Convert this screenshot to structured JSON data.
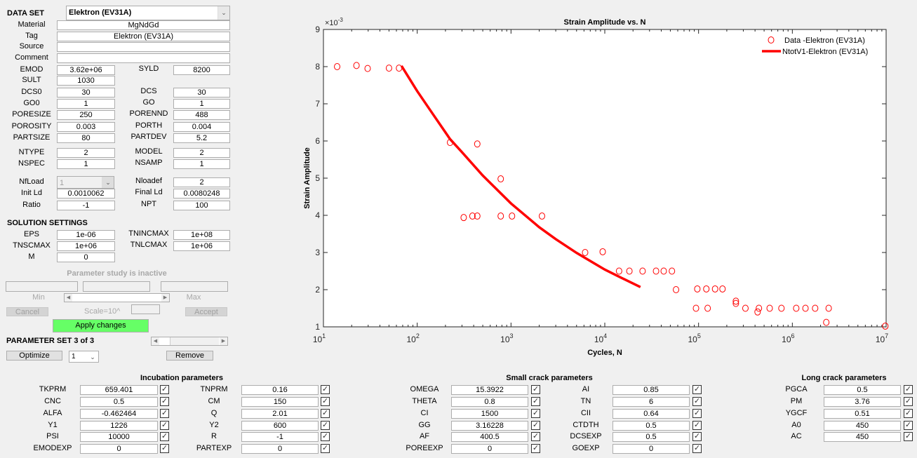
{
  "dataset": {
    "label": "DATA SET",
    "value": "Elektron (EV31A)"
  },
  "text_fields": [
    {
      "label": "Material",
      "value": "MgNdGd"
    },
    {
      "label": "Tag",
      "value": "Elektron (EV31A)"
    },
    {
      "label": "Source",
      "value": ""
    },
    {
      "label": "Comment",
      "value": ""
    }
  ],
  "material_rows": [
    {
      "l": "EMOD",
      "v": "3.62e+06",
      "l2": "SYLD",
      "v2": "8200"
    },
    {
      "l": "SULT",
      "v": "1030"
    },
    {
      "l": "DCS0",
      "v": "30",
      "l2": "DCS",
      "v2": "30"
    },
    {
      "l": "GO0",
      "v": "1",
      "l2": "GO",
      "v2": "1"
    },
    {
      "l": "PORESIZE",
      "v": "250",
      "l2": "PORENND",
      "v2": "488"
    },
    {
      "l": "POROSITY",
      "v": "0.003",
      "l2": "PORTH",
      "v2": "0.004"
    },
    {
      "l": "PARTSIZE",
      "v": "80",
      "l2": "PARTDEV",
      "v2": "5.2"
    },
    {
      "l": "NTYPE",
      "v": "2",
      "l2": "MODEL",
      "v2": "2"
    },
    {
      "l": "NSPEC",
      "v": "1",
      "l2": "NSAMP",
      "v2": "1"
    },
    {
      "l": "NfLoad",
      "v": "1",
      "l2": "Nloadef",
      "v2": "2"
    },
    {
      "l": "Init Ld",
      "v": "0.0010062",
      "l2": "Final Ld",
      "v2": "0.0080248"
    },
    {
      "l": "Ratio",
      "v": "-1",
      "l2": "NPT",
      "v2": "100"
    }
  ],
  "solution": {
    "title": "SOLUTION SETTINGS",
    "rows": [
      {
        "l": "EPS",
        "v": "1e-06",
        "l2": "TNINCMAX",
        "v2": "1e+08"
      },
      {
        "l": "TNSCMAX",
        "v": "1e+06",
        "l2": "TNLCMAX",
        "v2": "1e+06"
      },
      {
        "l": "M",
        "v": "0"
      }
    ]
  },
  "param_study": {
    "status": "Parameter study is inactive",
    "min_label": "Min",
    "max_label": "Max",
    "cancel": "Cancel",
    "scale_label": "Scale=10^",
    "accept": "Accept",
    "apply": "Apply changes",
    "apply_color": "#66ff66"
  },
  "param_set": {
    "title": "PARAMETER SET 3 of 3",
    "optimize": "Optimize",
    "select_value": "1",
    "remove": "Remove"
  },
  "groups": [
    {
      "title": "Incubation parameters",
      "cols": [
        [
          {
            "l": "TKPRM",
            "v": "659.401"
          },
          {
            "l": "CNC",
            "v": "0.5"
          },
          {
            "l": "ALFA",
            "v": "-0.462464"
          },
          {
            "l": "Y1",
            "v": "1226"
          },
          {
            "l": "PSI",
            "v": "10000"
          },
          {
            "l": "EMODEXP",
            "v": "0"
          }
        ],
        [
          {
            "l": "TNPRM",
            "v": "0.16"
          },
          {
            "l": "CM",
            "v": "150"
          },
          {
            "l": "Q",
            "v": "2.01"
          },
          {
            "l": "Y2",
            "v": "600"
          },
          {
            "l": "R",
            "v": "-1"
          },
          {
            "l": "PARTEXP",
            "v": "0"
          }
        ]
      ]
    },
    {
      "title": "Small crack parameters",
      "cols": [
        [
          {
            "l": "OMEGA",
            "v": "15.3922"
          },
          {
            "l": "THETA",
            "v": "0.8"
          },
          {
            "l": "CI",
            "v": "1500"
          },
          {
            "l": "GG",
            "v": "3.16228"
          },
          {
            "l": "AF",
            "v": "400.5"
          },
          {
            "l": "POREEXP",
            "v": "0"
          }
        ],
        [
          {
            "l": "AI",
            "v": "0.85"
          },
          {
            "l": "TN",
            "v": "6"
          },
          {
            "l": "CII",
            "v": "0.64"
          },
          {
            "l": "CTDTH",
            "v": "0.5"
          },
          {
            "l": "DCSEXP",
            "v": "0.5"
          },
          {
            "l": "GOEXP",
            "v": "0"
          }
        ]
      ]
    },
    {
      "title": "Long crack parameters",
      "cols": [
        [
          {
            "l": "PGCA",
            "v": "0.5"
          },
          {
            "l": "PM",
            "v": "3.76"
          },
          {
            "l": "YGCF",
            "v": "0.51"
          },
          {
            "l": "A0",
            "v": "450"
          },
          {
            "l": "AC",
            "v": "450"
          }
        ]
      ]
    }
  ],
  "chart_data": {
    "type": "scatter",
    "title": "Strain Amplitude vs. N",
    "xlabel": "Cycles, N",
    "ylabel": "Strain Amplitude",
    "y_multiplier": "×10",
    "y_multiplier_exp": "-3",
    "xscale": "log",
    "xlim": [
      10,
      10000000
    ],
    "ylim": [
      1,
      9
    ],
    "x_ticks": [
      {
        "base": "10",
        "exp": "1"
      },
      {
        "base": "10",
        "exp": "2"
      },
      {
        "base": "10",
        "exp": "3"
      },
      {
        "base": "10",
        "exp": "4"
      },
      {
        "base": "10",
        "exp": "5"
      },
      {
        "base": "10",
        "exp": "6"
      },
      {
        "base": "10",
        "exp": "7"
      }
    ],
    "y_ticks": [
      "1",
      "2",
      "3",
      "4",
      "5",
      "6",
      "7",
      "8",
      "9"
    ],
    "legend_position": "top-right",
    "series": [
      {
        "name": "Data -Elektron (EV31A)",
        "style": "circles",
        "color": "#ff0000",
        "points": [
          [
            14,
            8.0
          ],
          [
            22.5,
            8.03
          ],
          [
            29.6,
            7.95
          ],
          [
            50,
            7.96
          ],
          [
            64,
            7.96
          ],
          [
            224,
            5.96
          ],
          [
            437,
            5.92
          ],
          [
            313,
            3.94
          ],
          [
            388,
            3.98
          ],
          [
            437,
            3.98
          ],
          [
            777,
            4.98
          ],
          [
            777,
            3.98
          ],
          [
            1025,
            3.98
          ],
          [
            2140,
            3.98
          ],
          [
            6170,
            3.0
          ],
          [
            9500,
            3.02
          ],
          [
            14200,
            2.5
          ],
          [
            18300,
            2.5
          ],
          [
            25300,
            2.5
          ],
          [
            35200,
            2.5
          ],
          [
            42500,
            2.5
          ],
          [
            52000,
            2.5
          ],
          [
            57500,
            2.0
          ],
          [
            97000,
            2.02
          ],
          [
            121000,
            2.02
          ],
          [
            150000,
            2.02
          ],
          [
            180000,
            2.02
          ],
          [
            93900,
            1.5
          ],
          [
            125000,
            1.5
          ],
          [
            250000,
            1.69
          ],
          [
            250000,
            1.63
          ],
          [
            316000,
            1.5
          ],
          [
            426000,
            1.4
          ],
          [
            440000,
            1.5
          ],
          [
            573000,
            1.5
          ],
          [
            765000,
            1.5
          ],
          [
            1100000,
            1.5
          ],
          [
            1380000,
            1.5
          ],
          [
            1750000,
            1.5
          ],
          [
            2300000,
            1.12
          ],
          [
            2440000,
            1.5
          ],
          [
            9800000,
            1.02
          ]
        ]
      },
      {
        "name": "NtotV1-Elektron (EV31A)",
        "style": "line",
        "color": "#ff0000",
        "points": [
          [
            68,
            8.02
          ],
          [
            100,
            7.34
          ],
          [
            150,
            6.69
          ],
          [
            224,
            6.05
          ],
          [
            300,
            5.7
          ],
          [
            500,
            5.07
          ],
          [
            1000,
            4.32
          ],
          [
            2000,
            3.68
          ],
          [
            3000,
            3.36
          ],
          [
            5000,
            2.99
          ],
          [
            10000,
            2.54
          ],
          [
            15000,
            2.32
          ],
          [
            24000,
            2.07
          ]
        ]
      }
    ]
  }
}
